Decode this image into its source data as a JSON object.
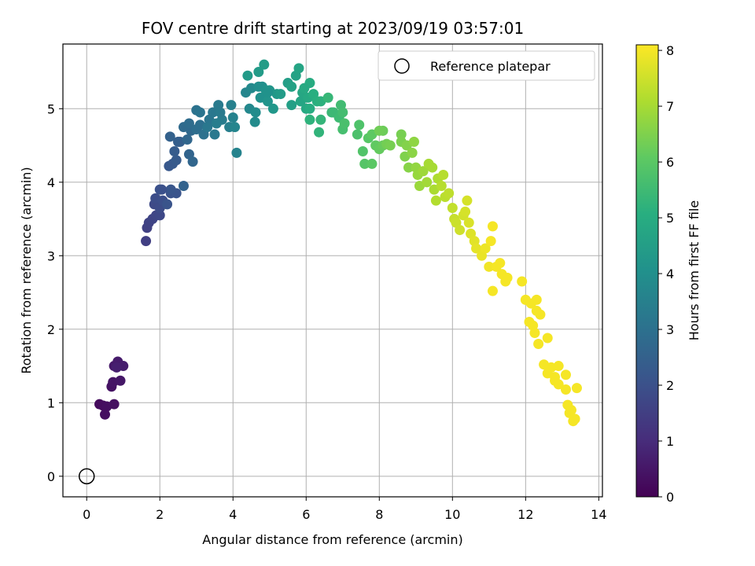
{
  "chart_data": {
    "type": "scatter",
    "title": "FOV centre drift starting at 2023/09/19 03:57:01",
    "xlabel": "Angular distance from reference (arcmin)",
    "ylabel": "Rotation from reference (arcmin)",
    "xlim": [
      -0.65,
      14.1
    ],
    "ylim": [
      -0.28,
      5.88
    ],
    "xticks": [
      0,
      2,
      4,
      6,
      8,
      10,
      12,
      14
    ],
    "yticks": [
      0,
      1,
      2,
      3,
      4,
      5
    ],
    "grid": true,
    "colormap": "viridis",
    "colorbar": {
      "label": "Hours from first FF file",
      "min": 0,
      "max": 8.1,
      "ticks": [
        0,
        1,
        2,
        3,
        4,
        5,
        6,
        7,
        8
      ]
    },
    "legend": {
      "position": "top-right",
      "entries": [
        {
          "label": "Reference platepar",
          "marker": "open-circle"
        }
      ]
    },
    "reference_point": {
      "x": 0,
      "y": 0
    },
    "points": [
      [
        0.35,
        0.98,
        0.2
      ],
      [
        0.45,
        0.96,
        0.25
      ],
      [
        0.55,
        0.95,
        0.3
      ],
      [
        0.5,
        0.84,
        0.3
      ],
      [
        0.75,
        0.98,
        0.35
      ],
      [
        0.68,
        1.22,
        0.4
      ],
      [
        0.72,
        1.28,
        0.45
      ],
      [
        0.92,
        1.3,
        0.5
      ],
      [
        0.75,
        1.5,
        0.55
      ],
      [
        0.85,
        1.56,
        0.6
      ],
      [
        1.0,
        1.5,
        0.65
      ],
      [
        0.82,
        1.48,
        0.7
      ],
      [
        1.62,
        3.2,
        1.5
      ],
      [
        1.65,
        3.38,
        1.55
      ],
      [
        1.7,
        3.45,
        1.6
      ],
      [
        1.8,
        3.5,
        1.65
      ],
      [
        1.9,
        3.55,
        1.7
      ],
      [
        2.0,
        3.55,
        1.75
      ],
      [
        1.85,
        3.7,
        1.8
      ],
      [
        2.0,
        3.65,
        1.85
      ],
      [
        1.88,
        3.78,
        1.9
      ],
      [
        2.08,
        3.75,
        1.95
      ],
      [
        2.0,
        3.9,
        2.0
      ],
      [
        2.3,
        3.85,
        2.05
      ],
      [
        2.45,
        3.85,
        2.1
      ],
      [
        2.3,
        3.9,
        2.15
      ],
      [
        2.25,
        4.22,
        2.2
      ],
      [
        2.35,
        4.25,
        2.25
      ],
      [
        2.45,
        4.3,
        2.3
      ],
      [
        2.4,
        4.42,
        2.35
      ],
      [
        2.5,
        4.55,
        2.4
      ],
      [
        2.55,
        4.55,
        2.45
      ],
      [
        2.28,
        4.62,
        2.5
      ],
      [
        2.65,
        3.95,
        2.55
      ],
      [
        2.8,
        4.38,
        2.6
      ],
      [
        2.9,
        4.28,
        2.65
      ],
      [
        2.75,
        4.58,
        2.7
      ],
      [
        2.85,
        4.7,
        2.75
      ],
      [
        2.65,
        4.75,
        2.8
      ],
      [
        2.8,
        4.8,
        2.85
      ],
      [
        3.0,
        4.72,
        2.9
      ],
      [
        3.1,
        4.78,
        2.95
      ],
      [
        3.2,
        4.65,
        3.0
      ],
      [
        3.0,
        4.98,
        3.05
      ],
      [
        3.1,
        4.95,
        3.1
      ],
      [
        3.35,
        4.85,
        3.15
      ],
      [
        3.45,
        4.95,
        3.2
      ],
      [
        3.5,
        4.65,
        3.25
      ],
      [
        3.6,
        5.05,
        3.3
      ],
      [
        3.7,
        4.85,
        3.35
      ],
      [
        3.55,
        4.8,
        3.4
      ],
      [
        3.9,
        4.75,
        3.45
      ],
      [
        3.95,
        5.05,
        3.5
      ],
      [
        4.0,
        4.88,
        3.55
      ],
      [
        4.1,
        4.4,
        3.6
      ],
      [
        4.05,
        4.75,
        3.65
      ],
      [
        4.35,
        5.22,
        3.7
      ],
      [
        4.45,
        5.0,
        3.75
      ],
      [
        4.5,
        5.28,
        3.8
      ],
      [
        4.6,
        4.82,
        3.85
      ],
      [
        4.62,
        4.95,
        3.9
      ],
      [
        4.7,
        5.3,
        3.95
      ],
      [
        4.8,
        5.3,
        4.0
      ],
      [
        4.75,
        5.15,
        4.05
      ],
      [
        4.9,
        5.25,
        4.1
      ],
      [
        4.95,
        5.1,
        4.15
      ],
      [
        5.0,
        5.25,
        4.2
      ],
      [
        5.1,
        5.0,
        4.25
      ],
      [
        5.2,
        5.2,
        4.3
      ],
      [
        4.4,
        5.45,
        4.35
      ],
      [
        4.7,
        5.5,
        4.4
      ],
      [
        4.85,
        5.6,
        4.45
      ],
      [
        5.5,
        5.35,
        4.5
      ],
      [
        5.6,
        5.05,
        4.55
      ],
      [
        5.6,
        5.3,
        4.6
      ],
      [
        5.72,
        5.45,
        4.65
      ],
      [
        5.8,
        5.55,
        4.7
      ],
      [
        5.85,
        5.1,
        4.75
      ],
      [
        5.9,
        5.22,
        4.8
      ],
      [
        6.0,
        5.0,
        4.85
      ],
      [
        6.05,
        5.15,
        4.9
      ],
      [
        6.1,
        5.35,
        4.95
      ],
      [
        6.1,
        5.0,
        5.0
      ],
      [
        6.2,
        5.2,
        5.05
      ],
      [
        6.3,
        5.1,
        5.1
      ],
      [
        6.4,
        5.1,
        5.15
      ],
      [
        6.1,
        4.85,
        5.2
      ],
      [
        6.35,
        4.68,
        5.25
      ],
      [
        6.4,
        4.85,
        5.3
      ],
      [
        6.6,
        5.15,
        5.35
      ],
      [
        6.7,
        4.95,
        5.4
      ],
      [
        6.75,
        4.95,
        5.45
      ],
      [
        6.9,
        4.88,
        5.5
      ],
      [
        6.95,
        5.05,
        5.55
      ],
      [
        7.0,
        4.95,
        5.6
      ],
      [
        7.0,
        4.72,
        5.65
      ],
      [
        7.05,
        4.8,
        5.7
      ],
      [
        7.4,
        4.65,
        5.75
      ],
      [
        7.45,
        4.78,
        5.8
      ],
      [
        7.55,
        4.42,
        5.85
      ],
      [
        7.6,
        4.25,
        5.9
      ],
      [
        7.7,
        4.6,
        5.95
      ],
      [
        7.8,
        4.25,
        6.0
      ],
      [
        7.8,
        4.65,
        6.05
      ],
      [
        7.9,
        4.5,
        6.1
      ],
      [
        8.0,
        4.45,
        6.15
      ],
      [
        8.1,
        4.5,
        6.2
      ],
      [
        8.1,
        4.7,
        6.25
      ],
      [
        8.0,
        4.7,
        6.3
      ],
      [
        8.2,
        4.52,
        6.35
      ],
      [
        8.6,
        4.65,
        6.4
      ],
      [
        8.6,
        4.55,
        6.45
      ],
      [
        8.7,
        4.35,
        6.5
      ],
      [
        8.75,
        4.5,
        6.55
      ],
      [
        8.8,
        4.2,
        6.6
      ],
      [
        8.9,
        4.4,
        6.65
      ],
      [
        8.95,
        4.55,
        6.7
      ],
      [
        9.0,
        4.2,
        6.75
      ],
      [
        9.05,
        4.1,
        6.8
      ],
      [
        9.1,
        3.95,
        6.85
      ],
      [
        9.2,
        4.15,
        6.9
      ],
      [
        9.3,
        4.0,
        6.95
      ],
      [
        9.35,
        4.25,
        7.0
      ],
      [
        9.5,
        3.9,
        7.05
      ],
      [
        9.6,
        4.05,
        7.1
      ],
      [
        9.55,
        3.75,
        7.15
      ],
      [
        9.75,
        4.1,
        7.2
      ],
      [
        9.8,
        3.8,
        7.25
      ],
      [
        9.9,
        3.85,
        7.3
      ],
      [
        10.0,
        3.65,
        7.35
      ],
      [
        10.05,
        3.5,
        7.4
      ],
      [
        10.1,
        3.45,
        7.45
      ],
      [
        10.2,
        3.35,
        7.5
      ],
      [
        10.3,
        3.55,
        7.55
      ],
      [
        10.4,
        3.75,
        7.6
      ],
      [
        10.45,
        3.45,
        7.65
      ],
      [
        10.5,
        3.3,
        7.7
      ],
      [
        10.6,
        3.2,
        7.75
      ],
      [
        10.65,
        3.1,
        7.8
      ],
      [
        10.8,
        3.0,
        7.85
      ],
      [
        10.9,
        3.1,
        7.9
      ],
      [
        11.0,
        2.85,
        7.95
      ],
      [
        11.05,
        3.2,
        8.0
      ],
      [
        11.1,
        3.4,
        8.0
      ],
      [
        11.2,
        2.85,
        8.0
      ],
      [
        11.3,
        2.9,
        8.0
      ],
      [
        11.35,
        2.75,
        8.0
      ],
      [
        11.45,
        2.65,
        8.0
      ],
      [
        11.1,
        2.52,
        8.0
      ],
      [
        11.9,
        2.65,
        8.0
      ],
      [
        12.0,
        2.4,
        8.0
      ],
      [
        12.1,
        2.1,
        8.0
      ],
      [
        12.15,
        2.35,
        8.0
      ],
      [
        12.2,
        2.05,
        8.0
      ],
      [
        12.3,
        2.25,
        8.0
      ],
      [
        12.25,
        1.95,
        8.0
      ],
      [
        12.35,
        1.8,
        8.0
      ],
      [
        12.3,
        2.4,
        8.0
      ],
      [
        12.4,
        2.2,
        8.0
      ],
      [
        12.5,
        1.52,
        8.0
      ],
      [
        12.6,
        1.4,
        8.0
      ],
      [
        12.7,
        1.48,
        8.0
      ],
      [
        12.6,
        1.88,
        8.0
      ],
      [
        12.8,
        1.3,
        8.0
      ],
      [
        12.9,
        1.5,
        8.0
      ],
      [
        12.8,
        1.35,
        8.0
      ],
      [
        13.1,
        1.38,
        8.0
      ],
      [
        13.15,
        0.97,
        8.0
      ],
      [
        13.2,
        0.86,
        8.0
      ],
      [
        13.3,
        0.75,
        8.0
      ],
      [
        13.4,
        1.2,
        8.0
      ],
      [
        13.25,
        0.9,
        8.0
      ],
      [
        13.1,
        1.18,
        8.0
      ],
      [
        13.35,
        0.78,
        8.0
      ],
      [
        12.9,
        1.25,
        8.0
      ],
      [
        2.05,
        3.9,
        2.0
      ],
      [
        2.2,
        3.7,
        2.1
      ],
      [
        3.65,
        4.95,
        3.3
      ],
      [
        3.3,
        4.75,
        3.2
      ],
      [
        4.95,
        5.22,
        4.1
      ],
      [
        5.3,
        5.2,
        4.4
      ],
      [
        5.95,
        5.28,
        4.9
      ],
      [
        8.3,
        4.5,
        6.4
      ],
      [
        9.45,
        4.2,
        7.0
      ],
      [
        9.7,
        3.95,
        7.2
      ],
      [
        10.35,
        3.6,
        7.6
      ],
      [
        11.5,
        2.7,
        8.0
      ]
    ]
  }
}
